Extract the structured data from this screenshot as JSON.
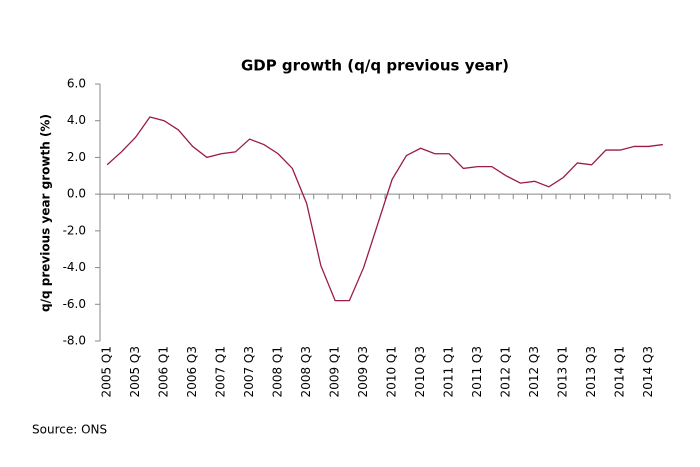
{
  "chart_data": {
    "type": "line",
    "title": "GDP growth (q/q previous year)",
    "y_label": "q/q previous year growth (%)",
    "source": "Source: ONS",
    "categories": [
      "2005 Q1",
      null,
      "2005 Q3",
      null,
      "2006 Q1",
      null,
      "2006 Q3",
      null,
      "2007 Q1",
      null,
      "2007 Q3",
      null,
      "2008 Q1",
      null,
      "2008 Q3",
      null,
      "2009 Q1",
      null,
      "2009 Q3",
      null,
      "2010 Q1",
      null,
      "2010 Q3",
      null,
      "2011 Q1",
      null,
      "2011 Q3",
      null,
      "2012 Q1",
      null,
      "2012 Q3",
      null,
      "2013 Q1",
      null,
      "2013 Q3",
      null,
      "2014 Q1",
      null,
      "2014 Q3",
      null
    ],
    "values": [
      1.6,
      2.3,
      3.1,
      4.2,
      4.0,
      3.5,
      2.6,
      2.0,
      2.2,
      2.3,
      3.0,
      2.7,
      2.2,
      1.4,
      -0.5,
      -3.9,
      -5.8,
      -5.8,
      -4.0,
      -1.6,
      0.8,
      2.1,
      2.5,
      2.2,
      2.2,
      1.4,
      1.5,
      1.5,
      1.0,
      0.6,
      0.7,
      0.4,
      0.9,
      1.7,
      1.6,
      2.4,
      2.4,
      2.6,
      2.6,
      2.7
    ],
    "color": "#9b1b46",
    "ylim": [
      -8,
      6
    ],
    "yticks": [
      {
        "value": -8,
        "label": "-8.0"
      },
      {
        "value": -6,
        "label": "-6.0"
      },
      {
        "value": -4,
        "label": "-4.0"
      },
      {
        "value": -2,
        "label": "-2.0"
      },
      {
        "value": 0,
        "label": "0.0"
      },
      {
        "value": 2,
        "label": "2.0"
      },
      {
        "value": 4,
        "label": "4.0"
      },
      {
        "value": 6,
        "label": "6.0"
      }
    ],
    "grid": false
  }
}
